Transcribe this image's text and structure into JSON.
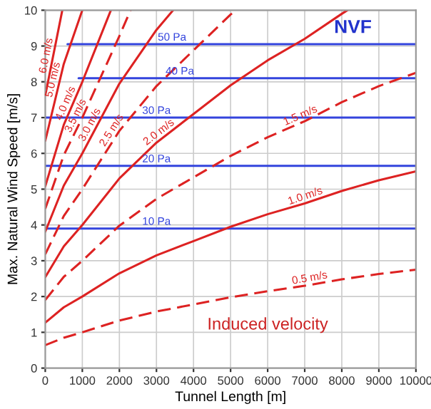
{
  "chart_data": {
    "type": "line",
    "xlabel": "Tunnel Length [m]",
    "ylabel": "Max. Natural Wind Speed [m/s]",
    "xlim": [
      0,
      10000
    ],
    "ylim": [
      0,
      10
    ],
    "xticks": [
      0,
      1000,
      2000,
      3000,
      4000,
      5000,
      6000,
      7000,
      8000,
      9000,
      10000
    ],
    "yticks": [
      0,
      1,
      2,
      3,
      4,
      5,
      6,
      7,
      8,
      9,
      10
    ],
    "grid": true,
    "legend": false,
    "annotations": [
      "NVF",
      "Induced velocity"
    ],
    "series": [
      {
        "name": "10 Pa",
        "color": "#3344dd",
        "line_style": "solid",
        "x": [
          0,
          10000
        ],
        "values": [
          3.9,
          3.9
        ]
      },
      {
        "name": "20 Pa",
        "color": "#3344dd",
        "line_style": "solid",
        "x": [
          0,
          10000
        ],
        "values": [
          5.65,
          5.65
        ]
      },
      {
        "name": "30 Pa",
        "color": "#3344dd",
        "line_style": "solid",
        "x": [
          0,
          10000
        ],
        "values": [
          7.0,
          7.0
        ]
      },
      {
        "name": "40 Pa",
        "color": "#3344dd",
        "line_style": "solid",
        "x": [
          900,
          10000
        ],
        "values": [
          8.1,
          8.1
        ]
      },
      {
        "name": "50 Pa",
        "color": "#3344dd",
        "line_style": "solid",
        "x": [
          600,
          10000
        ],
        "values": [
          9.05,
          9.05
        ]
      },
      {
        "name": "0.5 m/s",
        "color": "#dd2222",
        "line_style": "dashed",
        "x": [
          0,
          500,
          1000,
          2000,
          3000,
          4000,
          5000,
          6000,
          7000,
          8000,
          9000,
          10000
        ],
        "values": [
          0.64,
          0.85,
          1.0,
          1.33,
          1.58,
          1.78,
          1.98,
          2.15,
          2.3,
          2.48,
          2.63,
          2.75
        ]
      },
      {
        "name": "1.0 m/s",
        "color": "#dd2222",
        "line_style": "solid",
        "x": [
          0,
          500,
          1000,
          2000,
          3000,
          4000,
          5000,
          6000,
          7000,
          8000,
          9000,
          10000
        ],
        "values": [
          1.27,
          1.7,
          2.0,
          2.65,
          3.15,
          3.55,
          3.95,
          4.3,
          4.6,
          4.95,
          5.25,
          5.5
        ]
      },
      {
        "name": "1.5 m/s",
        "color": "#dd2222",
        "line_style": "dashed",
        "x": [
          0,
          500,
          1000,
          2000,
          3000,
          4000,
          5000,
          6000,
          7000,
          8000,
          9000,
          10000
        ],
        "values": [
          1.9,
          2.55,
          3.0,
          3.98,
          4.73,
          5.33,
          5.93,
          6.45,
          6.9,
          7.43,
          7.88,
          8.25
        ]
      },
      {
        "name": "2.0 m/s",
        "color": "#dd2222",
        "line_style": "solid",
        "x": [
          0,
          500,
          1000,
          2000,
          3000,
          4000,
          5000,
          6000,
          7000,
          8000,
          8150
        ],
        "values": [
          2.54,
          3.4,
          4.0,
          5.3,
          6.3,
          7.1,
          7.9,
          8.6,
          9.2,
          9.9,
          10
        ]
      },
      {
        "name": "2.5 m/s",
        "color": "#dd2222",
        "line_style": "dashed",
        "x": [
          0,
          500,
          1000,
          2000,
          3000,
          4000,
          5000,
          5150
        ],
        "values": [
          3.18,
          4.25,
          5.0,
          6.63,
          7.88,
          8.88,
          9.88,
          10
        ]
      },
      {
        "name": "3.0 m/s",
        "color": "#dd2222",
        "line_style": "solid",
        "x": [
          0,
          500,
          1000,
          2000,
          3000,
          3450
        ],
        "values": [
          3.81,
          5.1,
          6.0,
          7.95,
          9.45,
          10
        ]
      },
      {
        "name": "3.5 m/s",
        "color": "#dd2222",
        "line_style": "dashed",
        "x": [
          0,
          500,
          1000,
          2000,
          2300
        ],
        "values": [
          4.45,
          5.95,
          7.0,
          9.28,
          10
        ]
      },
      {
        "name": "4.0 m/s",
        "color": "#dd2222",
        "line_style": "solid",
        "x": [
          0,
          500,
          1000,
          1770
        ],
        "values": [
          5.08,
          6.8,
          8.0,
          10
        ]
      },
      {
        "name": "5.0 m/s",
        "color": "#dd2222",
        "line_style": "solid",
        "x": [
          0,
          500,
          1000
        ],
        "values": [
          6.35,
          8.5,
          10
        ]
      },
      {
        "name": "6.0 m/s",
        "color": "#dd2222",
        "line_style": "solid",
        "x": [
          0,
          460
        ],
        "values": [
          7.62,
          10
        ]
      }
    ]
  }
}
